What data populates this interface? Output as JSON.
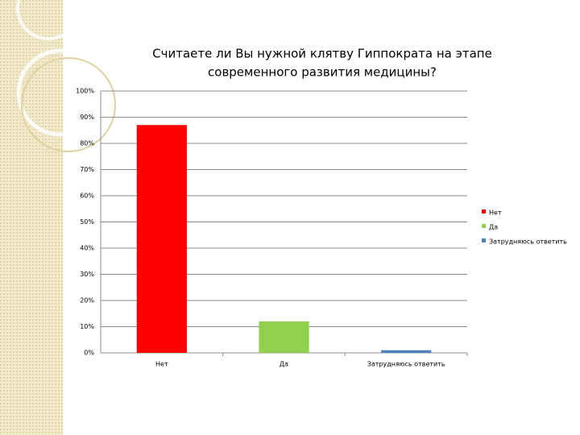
{
  "chart_data": {
    "type": "bar",
    "title": [
      "Считаете ли Вы нужной клятву Гиппократа на этапе",
      "современного развития медицины?"
    ],
    "categories": [
      "Нет",
      "Да",
      "Затрудняюсь ответить"
    ],
    "series": [
      {
        "name": "Нет",
        "color": "#ff0000"
      },
      {
        "name": "Да",
        "color": "#92d050"
      },
      {
        "name": "Затрудняюсь ответить",
        "color": "#4f81bd"
      }
    ],
    "values": [
      87,
      12,
      1
    ],
    "ylim": [
      0,
      100
    ],
    "yticks": [
      {
        "value": 0,
        "label": "0%"
      },
      {
        "value": 10,
        "label": "10%"
      },
      {
        "value": 20,
        "label": "20%"
      },
      {
        "value": 30,
        "label": "30%"
      },
      {
        "value": 40,
        "label": "40%"
      },
      {
        "value": 50,
        "label": "50%"
      },
      {
        "value": 60,
        "label": "60%"
      },
      {
        "value": 70,
        "label": "70%"
      },
      {
        "value": 80,
        "label": "80%"
      },
      {
        "value": 90,
        "label": "90%"
      },
      {
        "value": 100,
        "label": "100%"
      }
    ],
    "grid": true,
    "legend": "right"
  }
}
